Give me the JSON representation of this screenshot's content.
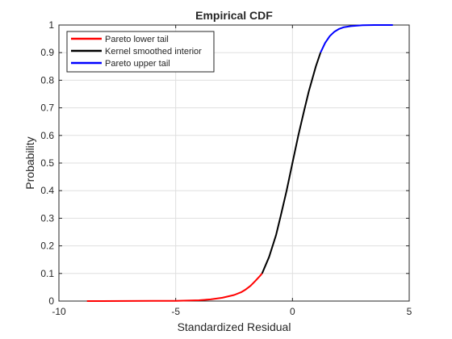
{
  "chart_data": {
    "type": "line",
    "title": "Empirical CDF",
    "xlabel": "Standardized Residual",
    "ylabel": "Probability",
    "xlim": [
      -10,
      5
    ],
    "ylim": [
      0,
      1
    ],
    "xticks": [
      -10,
      -5,
      0,
      5
    ],
    "xtick_labels": [
      "-10",
      "-5",
      "0",
      "5"
    ],
    "yticks": [
      0,
      0.1,
      0.2,
      0.3,
      0.4,
      0.5,
      0.6,
      0.7,
      0.8,
      0.9,
      1
    ],
    "ytick_labels": [
      "0",
      "0.1",
      "0.2",
      "0.3",
      "0.4",
      "0.5",
      "0.6",
      "0.7",
      "0.8",
      "0.9",
      "1"
    ],
    "grid": true,
    "legend_position": "top-left",
    "series": [
      {
        "name": "Pareto lower tail",
        "color": "#ff0000",
        "points": [
          [
            -8.8,
            0.0
          ],
          [
            -6.0,
            0.0005
          ],
          [
            -5.0,
            0.001
          ],
          [
            -4.0,
            0.003
          ],
          [
            -3.5,
            0.006
          ],
          [
            -3.0,
            0.012
          ],
          [
            -2.5,
            0.022
          ],
          [
            -2.2,
            0.032
          ],
          [
            -2.0,
            0.042
          ],
          [
            -1.8,
            0.055
          ],
          [
            -1.6,
            0.072
          ],
          [
            -1.4,
            0.09
          ],
          [
            -1.3,
            0.1
          ]
        ]
      },
      {
        "name": "Kernel smoothed interior",
        "color": "#000000",
        "points": [
          [
            -1.3,
            0.1
          ],
          [
            -1.0,
            0.16
          ],
          [
            -0.7,
            0.24
          ],
          [
            -0.5,
            0.31
          ],
          [
            -0.25,
            0.4
          ],
          [
            0.0,
            0.5
          ],
          [
            0.25,
            0.6
          ],
          [
            0.5,
            0.69
          ],
          [
            0.7,
            0.76
          ],
          [
            1.0,
            0.85
          ],
          [
            1.2,
            0.9
          ]
        ]
      },
      {
        "name": "Pareto upper tail",
        "color": "#0000ff",
        "points": [
          [
            1.2,
            0.9
          ],
          [
            1.4,
            0.935
          ],
          [
            1.6,
            0.96
          ],
          [
            1.8,
            0.976
          ],
          [
            2.0,
            0.986
          ],
          [
            2.2,
            0.992
          ],
          [
            2.5,
            0.996
          ],
          [
            3.0,
            0.999
          ],
          [
            3.5,
            1.0
          ],
          [
            4.3,
            1.0
          ]
        ]
      }
    ]
  }
}
